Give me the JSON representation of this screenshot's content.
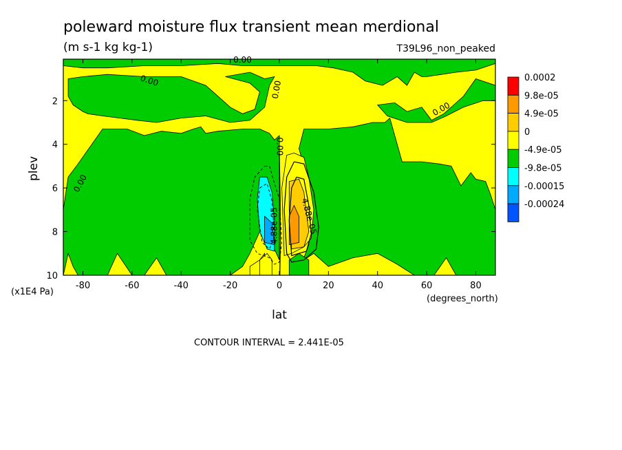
{
  "chart_data": {
    "type": "heatmap",
    "title": "poleward moisture flux transient mean merdional",
    "units": "(m s-1 kg kg-1)",
    "experiment": "T39L96_non_peaked",
    "xlabel": "lat",
    "x_units": "(degrees_north)",
    "ylabel": "plev",
    "y_units": "(x1E4 Pa)",
    "xlim": [
      -88,
      88
    ],
    "ylim": [
      10,
      0.1
    ],
    "x_ticks": [
      -80,
      -60,
      -40,
      -20,
      0,
      20,
      40,
      60,
      80
    ],
    "x_tick_labels": [
      "-80",
      "-60",
      "-40",
      "-20",
      "0",
      "20",
      "40",
      "60",
      "80"
    ],
    "y_ticks": [
      2,
      4,
      6,
      8,
      10
    ],
    "y_tick_labels": [
      "2",
      "4",
      "6",
      "8",
      "10"
    ],
    "contour_interval_text": "CONTOUR INTERVAL = 2.441E-05",
    "levels": [
      {
        "label": "0.0002",
        "color": "#ff0000"
      },
      {
        "label": "9.8e-05",
        "color": "#ff9900"
      },
      {
        "label": "4.9e-05",
        "color": "#ffcc00"
      },
      {
        "label": "0",
        "color": "#ffff00"
      },
      {
        "label": "-4.9e-05",
        "color": "#00cc00"
      },
      {
        "label": "-9.8e-05",
        "color": "#00ffff"
      },
      {
        "label": "-0.00015",
        "color": "#00aaff"
      },
      {
        "label": "-0.00024",
        "color": "#0055ff"
      }
    ],
    "background_fill": "#ffff00",
    "regions": [
      {
        "level": "-4.9e-05",
        "points": [
          [
            -88,
            0.1
          ],
          [
            88,
            0.1
          ],
          [
            88,
            0.3
          ],
          [
            80,
            0.6
          ],
          [
            72,
            0.7
          ],
          [
            60,
            0.9
          ],
          [
            58,
            0.9
          ],
          [
            55,
            0.7
          ],
          [
            52,
            1.3
          ],
          [
            48,
            0.9
          ],
          [
            42,
            1.3
          ],
          [
            35,
            1.1
          ],
          [
            30,
            0.7
          ],
          [
            22,
            0.5
          ],
          [
            15,
            0.4
          ],
          [
            5,
            0.4
          ],
          [
            0,
            0.4
          ],
          [
            -5,
            0.4
          ],
          [
            -15,
            0.4
          ],
          [
            -25,
            0.3
          ],
          [
            -40,
            0.4
          ],
          [
            -55,
            0.4
          ],
          [
            -70,
            0.5
          ],
          [
            -80,
            0.5
          ],
          [
            -88,
            0.4
          ]
        ]
      },
      {
        "level": "-4.9e-05",
        "points": [
          [
            -86,
            1.0
          ],
          [
            -80,
            0.9
          ],
          [
            -70,
            0.8
          ],
          [
            -55,
            0.9
          ],
          [
            -40,
            0.9
          ],
          [
            -30,
            1.3
          ],
          [
            -24,
            1.9
          ],
          [
            -20,
            2.3
          ],
          [
            -15,
            2.6
          ],
          [
            -10,
            2.4
          ],
          [
            -8,
            1.6
          ],
          [
            -12,
            1.2
          ],
          [
            -22,
            0.9
          ],
          [
            -12,
            0.7
          ],
          [
            -6,
            1.0
          ],
          [
            -2,
            0.9
          ],
          [
            -4,
            1.3
          ],
          [
            -6,
            2.3
          ],
          [
            -12,
            2.9
          ],
          [
            -20,
            3.0
          ],
          [
            -30,
            2.7
          ],
          [
            -40,
            2.8
          ],
          [
            -50,
            3.0
          ],
          [
            -58,
            2.9
          ],
          [
            -65,
            2.8
          ],
          [
            -72,
            2.7
          ],
          [
            -78,
            2.6
          ],
          [
            -80,
            2.5
          ],
          [
            -84,
            2.2
          ],
          [
            -86,
            1.8
          ]
        ]
      },
      {
        "level": "-4.9e-05",
        "points": [
          [
            40,
            2.2
          ],
          [
            47,
            2.1
          ],
          [
            52,
            2.5
          ],
          [
            58,
            2.3
          ],
          [
            62,
            2.9
          ],
          [
            67,
            2.6
          ],
          [
            75,
            1.8
          ],
          [
            80,
            1.0
          ],
          [
            88,
            1.3
          ],
          [
            88,
            2.0
          ],
          [
            83,
            2.0
          ],
          [
            75,
            2.3
          ],
          [
            68,
            2.7
          ],
          [
            62,
            3.0
          ],
          [
            52,
            3.0
          ],
          [
            44,
            2.7
          ]
        ]
      },
      {
        "level": "-4.9e-05",
        "points": [
          [
            -88,
            7.0
          ],
          [
            -86,
            5.5
          ],
          [
            -82,
            4.9
          ],
          [
            -72,
            3.3
          ],
          [
            -62,
            3.3
          ],
          [
            -55,
            3.6
          ],
          [
            -48,
            3.4
          ],
          [
            -40,
            3.5
          ],
          [
            -35,
            3.3
          ],
          [
            -32,
            3.2
          ],
          [
            -30,
            3.5
          ],
          [
            -25,
            3.4
          ],
          [
            -15,
            3.3
          ],
          [
            -8,
            3.3
          ],
          [
            -4,
            3.5
          ],
          [
            -2,
            3.8
          ],
          [
            0,
            3.6
          ],
          [
            0,
            9.3
          ],
          [
            -4,
            8.3
          ],
          [
            -8,
            8.0
          ],
          [
            -12,
            9.0
          ],
          [
            -15,
            9.6
          ],
          [
            -20,
            10
          ],
          [
            -88,
            10
          ]
        ]
      },
      {
        "level": "-4.9e-05",
        "points": [
          [
            10,
            3.3
          ],
          [
            20,
            3.3
          ],
          [
            30,
            3.2
          ],
          [
            38,
            3.0
          ],
          [
            43,
            3.0
          ],
          [
            45,
            2.8
          ],
          [
            50,
            4.8
          ],
          [
            58,
            4.8
          ],
          [
            65,
            4.9
          ],
          [
            70,
            5.0
          ],
          [
            74,
            5.9
          ],
          [
            78,
            5.3
          ],
          [
            80,
            5.6
          ],
          [
            84,
            5.7
          ],
          [
            86,
            6.3
          ],
          [
            88,
            7.0
          ],
          [
            88,
            10
          ],
          [
            10,
            10
          ],
          [
            10,
            9.2
          ],
          [
            12,
            8.6
          ],
          [
            12,
            7.8
          ],
          [
            10,
            6.0
          ],
          [
            10,
            5.0
          ],
          [
            8,
            4.2
          ]
        ]
      },
      {
        "level": "0",
        "points": [
          [
            -88,
            10
          ],
          [
            -86,
            9.0
          ],
          [
            -84,
            9.6
          ],
          [
            -82,
            10
          ]
        ]
      },
      {
        "level": "0",
        "points": [
          [
            -70,
            10
          ],
          [
            -66,
            9.0
          ],
          [
            -60,
            10
          ]
        ]
      },
      {
        "level": "0",
        "points": [
          [
            -55,
            10
          ],
          [
            -50,
            9.2
          ],
          [
            -46,
            10
          ]
        ]
      },
      {
        "level": "0",
        "points": [
          [
            -6,
            9.0
          ],
          [
            -8,
            9.3
          ],
          [
            -12,
            9.6
          ],
          [
            -12,
            10
          ],
          [
            -6,
            10
          ]
        ]
      },
      {
        "level": "0",
        "points": [
          [
            6,
            10
          ],
          [
            10,
            9.3
          ],
          [
            14,
            9.0
          ],
          [
            20,
            9.6
          ],
          [
            30,
            9.2
          ],
          [
            40,
            9.0
          ],
          [
            48,
            9.5
          ],
          [
            55,
            10
          ]
        ]
      },
      {
        "level": "0",
        "points": [
          [
            63,
            10
          ],
          [
            68,
            9.2
          ],
          [
            72,
            10
          ]
        ]
      },
      {
        "level": "0",
        "points": [
          [
            3,
            4.5
          ],
          [
            6,
            4.4
          ],
          [
            10,
            4.6
          ],
          [
            12,
            5.5
          ],
          [
            14,
            7.0
          ],
          [
            13,
            8.3
          ],
          [
            10,
            8.7
          ],
          [
            5,
            9.0
          ],
          [
            2,
            9.1
          ],
          [
            1,
            6.0
          ]
        ]
      },
      {
        "level": "4.9e-05",
        "points": [
          [
            4,
            5.7
          ],
          [
            8,
            5.6
          ],
          [
            10,
            6.2
          ],
          [
            12,
            8.0
          ],
          [
            10,
            8.7
          ],
          [
            5,
            8.8
          ],
          [
            4,
            7.0
          ]
        ]
      },
      {
        "level": "9.8e-05",
        "points": [
          [
            4,
            7.3
          ],
          [
            6,
            6.8
          ],
          [
            8,
            7.3
          ],
          [
            8,
            8.5
          ],
          [
            4,
            8.6
          ]
        ]
      },
      {
        "level": "-9.8e-05",
        "points": [
          [
            -8,
            5.5
          ],
          [
            -5,
            5.5
          ],
          [
            -3,
            6.2
          ],
          [
            -2,
            7.5
          ],
          [
            -2,
            8.9
          ],
          [
            -5,
            8.8
          ],
          [
            -8,
            8.0
          ],
          [
            -9,
            6.5
          ]
        ]
      },
      {
        "level": "-0.00015",
        "points": [
          [
            -6,
            7.3
          ],
          [
            -3,
            7.6
          ],
          [
            -2,
            8.6
          ],
          [
            -6,
            8.5
          ]
        ]
      },
      {
        "level": "0",
        "points": [
          [
            -8,
            9.3
          ],
          [
            -5,
            9.0
          ],
          [
            -3,
            9.3
          ],
          [
            -3,
            10
          ],
          [
            -8,
            10
          ]
        ]
      },
      {
        "level": "-4.9e-05",
        "points": [
          [
            4,
            9.3
          ],
          [
            8,
            9.0
          ],
          [
            12,
            9.3
          ],
          [
            12,
            10
          ],
          [
            4,
            10
          ]
        ]
      }
    ],
    "contours": [
      {
        "style": "dashed",
        "points": [
          [
            -6,
            5.0
          ],
          [
            -4,
            5.0
          ],
          [
            -2,
            5.8
          ],
          [
            0,
            6.5
          ],
          [
            1,
            8.5
          ],
          [
            0,
            9.4
          ],
          [
            -2,
            9.5
          ],
          [
            -4,
            9.2
          ],
          [
            -9,
            9.0
          ],
          [
            -12,
            8.4
          ],
          [
            -12,
            6.5
          ],
          [
            -10,
            5.5
          ],
          [
            -6,
            5.0
          ]
        ]
      },
      {
        "style": "dashed",
        "points": [
          [
            -8,
            6.0
          ],
          [
            -5,
            5.8
          ],
          [
            -3,
            6.6
          ],
          [
            -2,
            8.2
          ],
          [
            -4,
            8.8
          ],
          [
            -7,
            8.5
          ],
          [
            -9,
            7.0
          ],
          [
            -8,
            6.0
          ]
        ]
      },
      {
        "style": "solid",
        "points": [
          [
            6,
            4.8
          ],
          [
            10,
            4.9
          ],
          [
            14,
            6.2
          ],
          [
            16,
            7.8
          ],
          [
            15,
            8.8
          ],
          [
            10,
            9.3
          ],
          [
            5,
            9.4
          ],
          [
            3,
            9.0
          ],
          [
            2,
            7.0
          ],
          [
            3,
            5.5
          ],
          [
            6,
            4.8
          ]
        ]
      },
      {
        "style": "solid",
        "points": [
          [
            7,
            5.5
          ],
          [
            10,
            5.6
          ],
          [
            12,
            6.8
          ],
          [
            13,
            8.1
          ],
          [
            11,
            8.9
          ],
          [
            5,
            9.1
          ],
          [
            4,
            7.5
          ],
          [
            5,
            6.0
          ],
          [
            7,
            5.5
          ]
        ]
      },
      {
        "style": "solid",
        "points": [
          [
            0,
            4.4
          ],
          [
            0.3,
            6.5
          ],
          [
            0.4,
            8.5
          ],
          [
            0.2,
            10
          ]
        ]
      }
    ],
    "contour_labels": [
      {
        "text": "0.00",
        "x": -15,
        "y": 0.15,
        "rotate": 0
      },
      {
        "text": "0.00",
        "x": -53,
        "y": 1.1,
        "rotate": 18
      },
      {
        "text": "0.00",
        "x": -1,
        "y": 1.5,
        "rotate": -80
      },
      {
        "text": "0.00",
        "x": 66,
        "y": 2.4,
        "rotate": -30
      },
      {
        "text": "0.00",
        "x": 0,
        "y": 4.1,
        "rotate": 90
      },
      {
        "text": "0.00",
        "x": -81,
        "y": 5.8,
        "rotate": -62
      },
      {
        "text": "-4.88e-05",
        "x": -2,
        "y": 7.8,
        "rotate": -90
      },
      {
        "text": "4.88e-05",
        "x": 12,
        "y": 7.3,
        "rotate": 75
      }
    ]
  }
}
